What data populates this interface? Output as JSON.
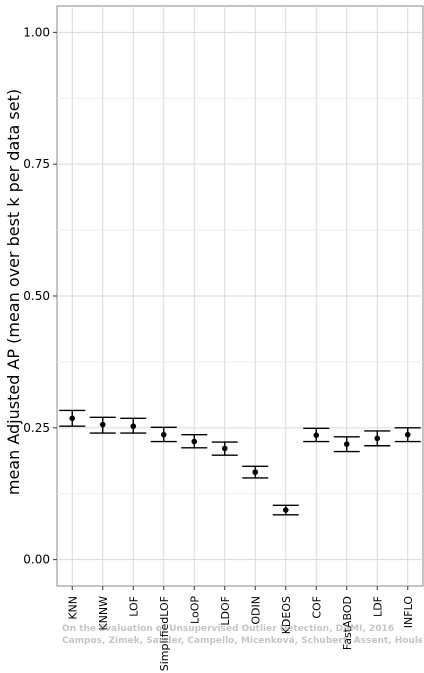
{
  "chart_data": {
    "type": "scatter",
    "ylabel": "mean Adjusted AP (mean over best k per data set)",
    "ylim": [
      -0.05,
      1.05
    ],
    "yticks": [
      0.0,
      0.25,
      0.5,
      0.75,
      1.0
    ],
    "ytick_labels": [
      "0.00",
      "0.25",
      "0.50",
      "0.75",
      "1.00"
    ],
    "grid": true,
    "categories": [
      "KNN",
      "KNNW",
      "LOF",
      "SimplifiedLOF",
      "LoOP",
      "LDOF",
      "ODIN",
      "KDEOS",
      "COF",
      "FastABOD",
      "LDF",
      "INFLO"
    ],
    "series": [
      {
        "values": [
          0.268,
          0.256,
          0.253,
          0.237,
          0.224,
          0.211,
          0.166,
          0.094,
          0.236,
          0.219,
          0.23,
          0.237
        ],
        "lower": [
          0.253,
          0.24,
          0.24,
          0.224,
          0.212,
          0.198,
          0.155,
          0.085,
          0.224,
          0.205,
          0.216,
          0.224
        ],
        "upper": [
          0.283,
          0.27,
          0.268,
          0.251,
          0.237,
          0.223,
          0.177,
          0.103,
          0.249,
          0.233,
          0.244,
          0.25
        ]
      }
    ]
  },
  "watermark": {
    "line1": "On the Evaluation of Unsupervised Outlier Detection, DAMI, 2016",
    "line2": "Campos, Zimek, Sander, Campello, Micenková, Schubert, Assent, Houle"
  },
  "colors": {
    "panel_bg": "#ffffff",
    "grid_major": "#d9d9d9",
    "grid_minor": "#eeeeee",
    "mark": "#000000"
  }
}
